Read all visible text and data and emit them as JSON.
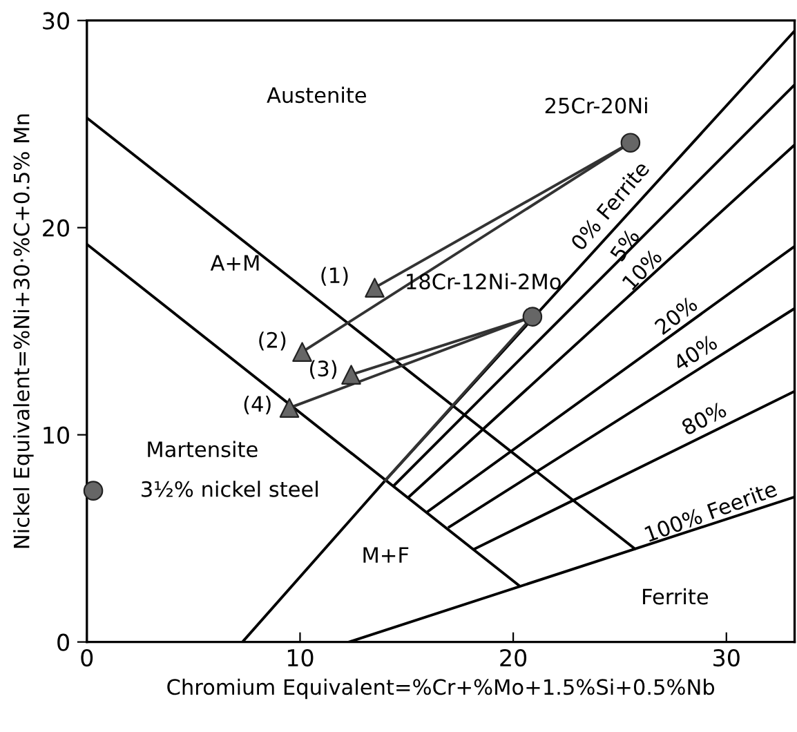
{
  "chart_data": {
    "type": "line",
    "xlabel": "Chromium Equivalent=%Cr+%Mo+1.5%Si+0.5%Nb",
    "ylabel": "Nickel Equivalent=%Ni+30·%C+0.5% Mn",
    "xlim": [
      0,
      33.2
    ],
    "ylim": [
      0,
      30
    ],
    "xticks": [
      0,
      10,
      20,
      30
    ],
    "yticks": [
      0,
      10,
      20,
      30
    ],
    "grid": false,
    "legend": false,
    "series": [
      {
        "x": [
          0,
          25.7
        ],
        "values": [
          25.3,
          4.5
        ],
        "color": "#000000"
      },
      {
        "x": [
          0,
          20.3
        ],
        "values": [
          19.2,
          2.7
        ],
        "color": "#000000"
      },
      {
        "x": [
          7.3,
          14.0,
          33.2
        ],
        "values": [
          0,
          7.8,
          29.5
        ],
        "color": "#000000"
      },
      {
        "x": [
          14.4,
          33.2
        ],
        "values": [
          7.55,
          26.9
        ],
        "color": "#000000"
      },
      {
        "x": [
          15.1,
          33.2
        ],
        "values": [
          7.0,
          24.0
        ],
        "color": "#000000"
      },
      {
        "x": [
          16.0,
          33.2
        ],
        "values": [
          6.3,
          19.1
        ],
        "color": "#000000"
      },
      {
        "x": [
          17.0,
          33.2
        ],
        "values": [
          5.55,
          16.1
        ],
        "color": "#000000"
      },
      {
        "x": [
          18.2,
          33.2
        ],
        "values": [
          4.5,
          12.1
        ],
        "color": "#000000"
      },
      {
        "x": [
          12.3,
          33.2
        ],
        "values": [
          0,
          7.0
        ],
        "color": "#000000"
      },
      {
        "x": [
          13.5,
          25.5
        ],
        "values": [
          17.1,
          24.1
        ],
        "color": "#333333"
      },
      {
        "x": [
          10.1,
          25.5
        ],
        "values": [
          14.0,
          24.1
        ],
        "color": "#333333"
      },
      {
        "x": [
          12.4,
          20.9
        ],
        "values": [
          12.9,
          15.7
        ],
        "color": "#333333"
      },
      {
        "x": [
          9.5,
          20.9
        ],
        "values": [
          11.3,
          15.7
        ],
        "color": "#333333"
      },
      {
        "x": [
          20.9,
          14.0
        ],
        "values": [
          15.7,
          7.8
        ],
        "color": "#333333"
      },
      {
        "type": "scatter",
        "marker": "triangle",
        "x": [
          13.5,
          10.1,
          12.4,
          9.5
        ],
        "values": [
          17.1,
          14.0,
          12.9,
          11.3
        ],
        "color": "#666666"
      },
      {
        "type": "scatter",
        "marker": "circle",
        "x": [
          25.5,
          20.9,
          0.3
        ],
        "values": [
          24.1,
          15.7,
          7.3
        ],
        "color": "#666666"
      }
    ],
    "annotations": [
      "Austenite",
      "A+M",
      "(1)",
      "(2)",
      "(3)",
      "(4)",
      "Martensite",
      "3½% nickel steel",
      "M+F",
      "Ferrite",
      "25Cr-20Ni",
      "18Cr-12Ni-2Mo",
      "0% Ferrite",
      "5%",
      "10%",
      "20%",
      "40%",
      "80%",
      "100% Feerite"
    ]
  }
}
